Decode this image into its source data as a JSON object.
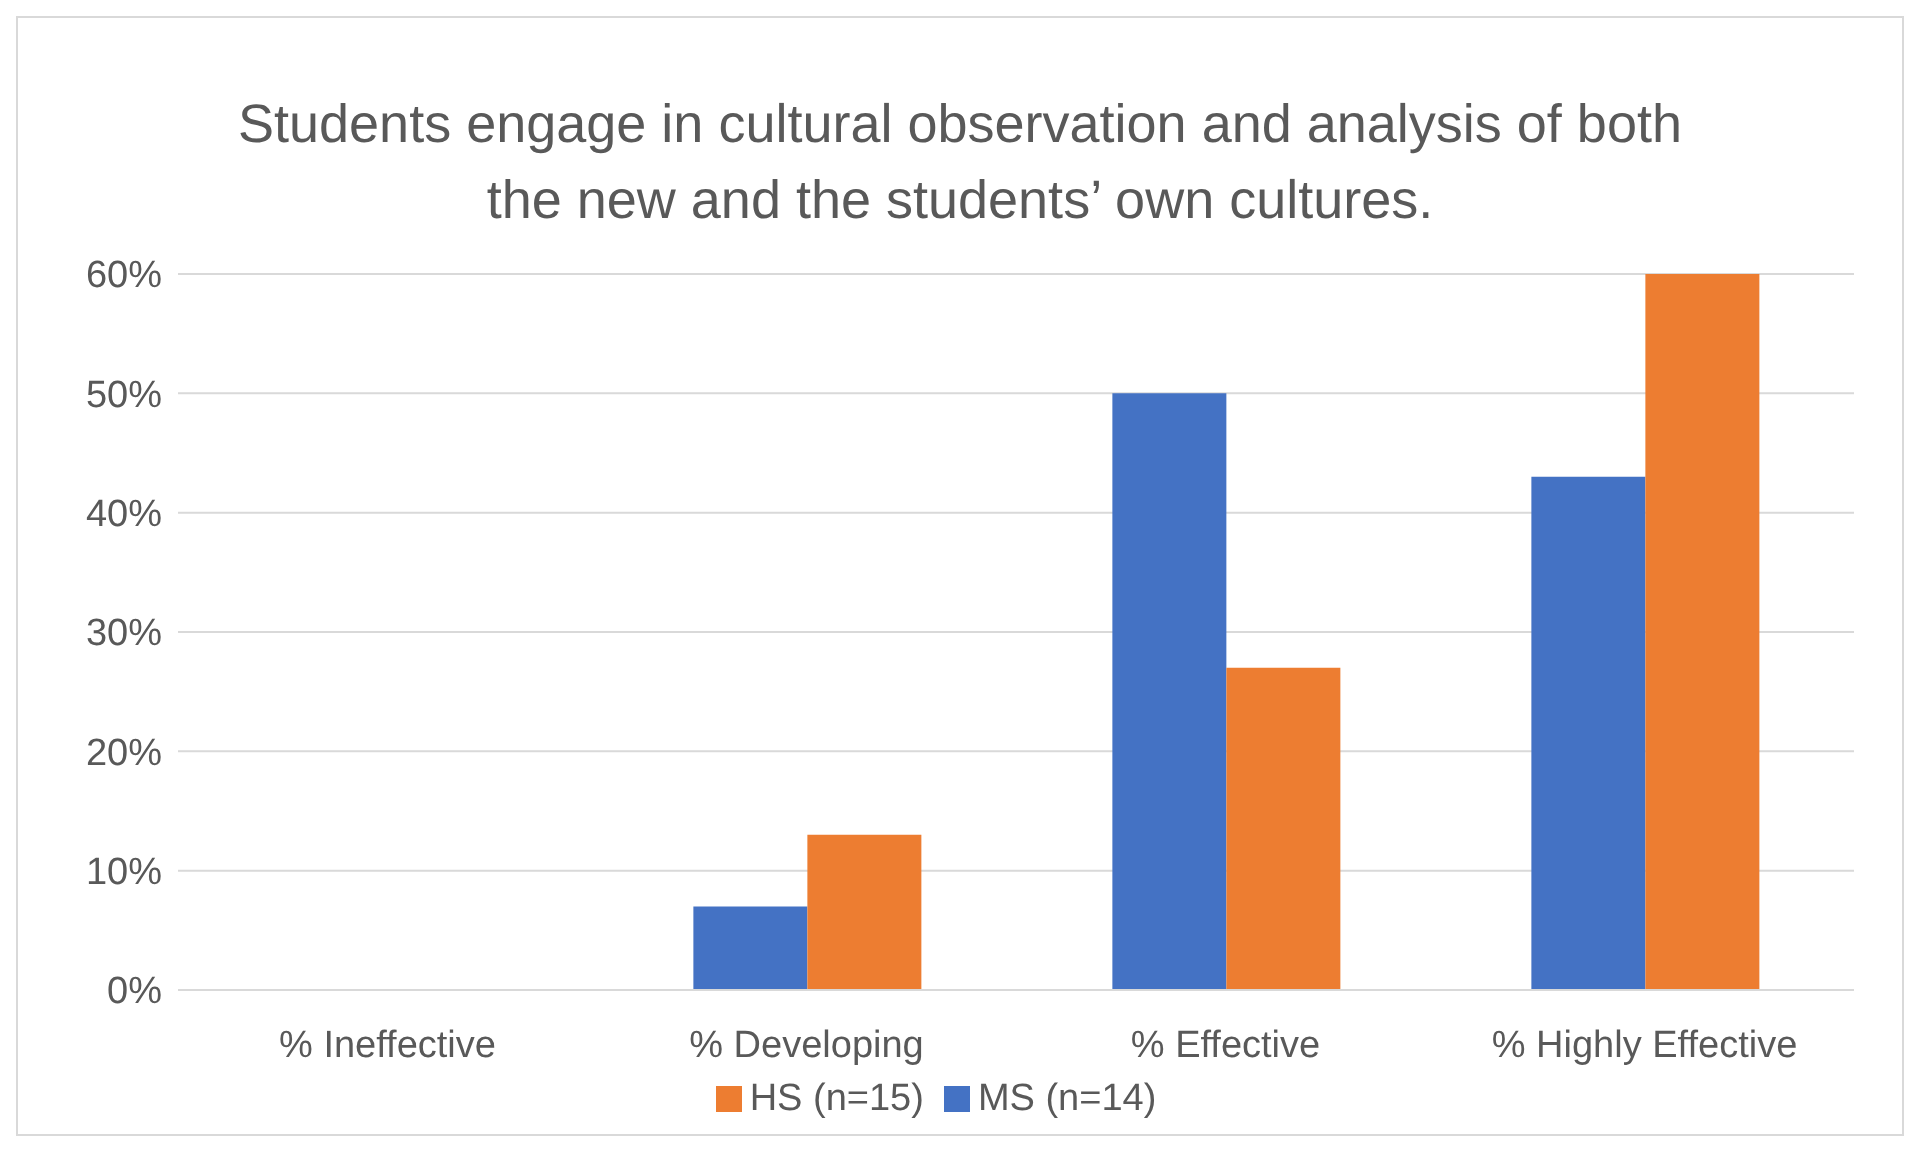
{
  "chart_data": {
    "type": "bar",
    "title": "Students engage in cultural observation and analysis of both the new and the students’ own cultures.",
    "categories": [
      "% Ineffective",
      "% Developing",
      "% Effective",
      "% Highly Effective"
    ],
    "series": [
      {
        "name": "MS (n=14)",
        "color": "#4472c4",
        "values": [
          0,
          7,
          50,
          43
        ]
      },
      {
        "name": "HS (n=15)",
        "color": "#ed7d31",
        "values": [
          0,
          13,
          27,
          60
        ]
      }
    ],
    "ylim": [
      0,
      60
    ],
    "yticks": [
      {
        "value": 0,
        "label": "0%"
      },
      {
        "value": 10,
        "label": "10%"
      },
      {
        "value": 20,
        "label": "20%"
      },
      {
        "value": 30,
        "label": "30%"
      },
      {
        "value": 40,
        "label": "40%"
      },
      {
        "value": 50,
        "label": "50%"
      },
      {
        "value": 60,
        "label": "60%"
      }
    ],
    "grid": "y",
    "legend": "bottom"
  }
}
